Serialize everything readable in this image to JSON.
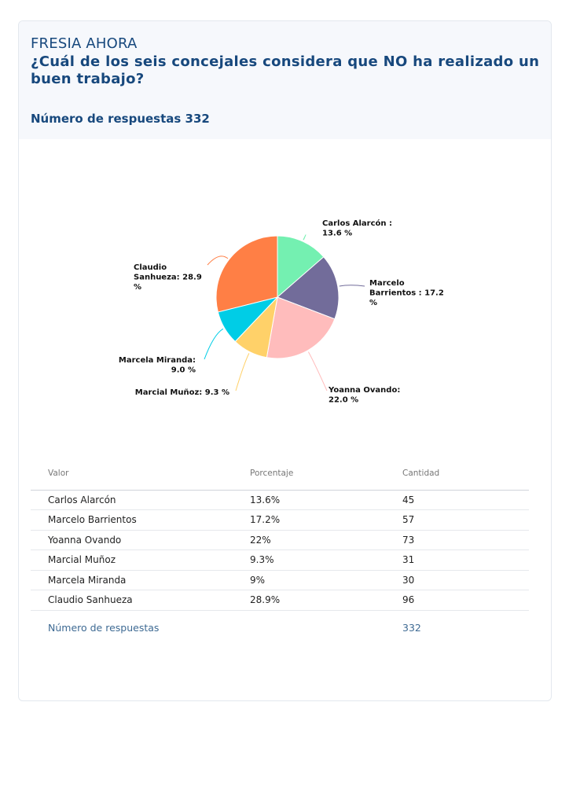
{
  "header": {
    "brand": "FRESIA AHORA",
    "question": "¿Cuál de los seis concejales considera que NO ha realizado un buen trabajo?",
    "responses_label": "Número de respuestas 332"
  },
  "chart_data": {
    "type": "pie",
    "title": "",
    "slices": [
      {
        "name": "Carlos Alarcón",
        "value": 13.6,
        "label": "Carlos Alarcón : 13.6 %",
        "color": "#74f0b1"
      },
      {
        "name": "Marcelo Barrientos",
        "value": 17.2,
        "label": "Marcelo Barrientos : 17.2 %",
        "color": "#726c9a"
      },
      {
        "name": "Yoanna Ovando",
        "value": 22.0,
        "label": "Yoanna Ovando: 22.0 %",
        "color": "#ffbcbc"
      },
      {
        "name": "Marcial Muñoz",
        "value": 9.3,
        "label": "Marcial Muñoz: 9.3 %",
        "color": "#ffd169"
      },
      {
        "name": "Marcela Miranda",
        "value": 9.0,
        "label": "Marcela Miranda: 9.0 %",
        "color": "#00cde6"
      },
      {
        "name": "Claudio Sanhueza",
        "value": 28.9,
        "label": "Claudio Sanhueza: 28.9 %",
        "color": "#ff7f45"
      }
    ]
  },
  "table": {
    "headers": [
      "Valor",
      "Porcentaje",
      "Cantidad"
    ],
    "rows": [
      {
        "valor": "Carlos Alarcón",
        "porcentaje": "13.6%",
        "cantidad": "45"
      },
      {
        "valor": "Marcelo Barrientos",
        "porcentaje": "17.2%",
        "cantidad": "57"
      },
      {
        "valor": "Yoanna Ovando",
        "porcentaje": "22%",
        "cantidad": "73"
      },
      {
        "valor": "Marcial Muñoz",
        "porcentaje": "9.3%",
        "cantidad": "31"
      },
      {
        "valor": "Marcela Miranda",
        "porcentaje": "9%",
        "cantidad": "30"
      },
      {
        "valor": "Claudio Sanhueza",
        "porcentaje": "28.9%",
        "cantidad": "96"
      }
    ],
    "total_label": "Número de respuestas",
    "total_value": "332"
  }
}
